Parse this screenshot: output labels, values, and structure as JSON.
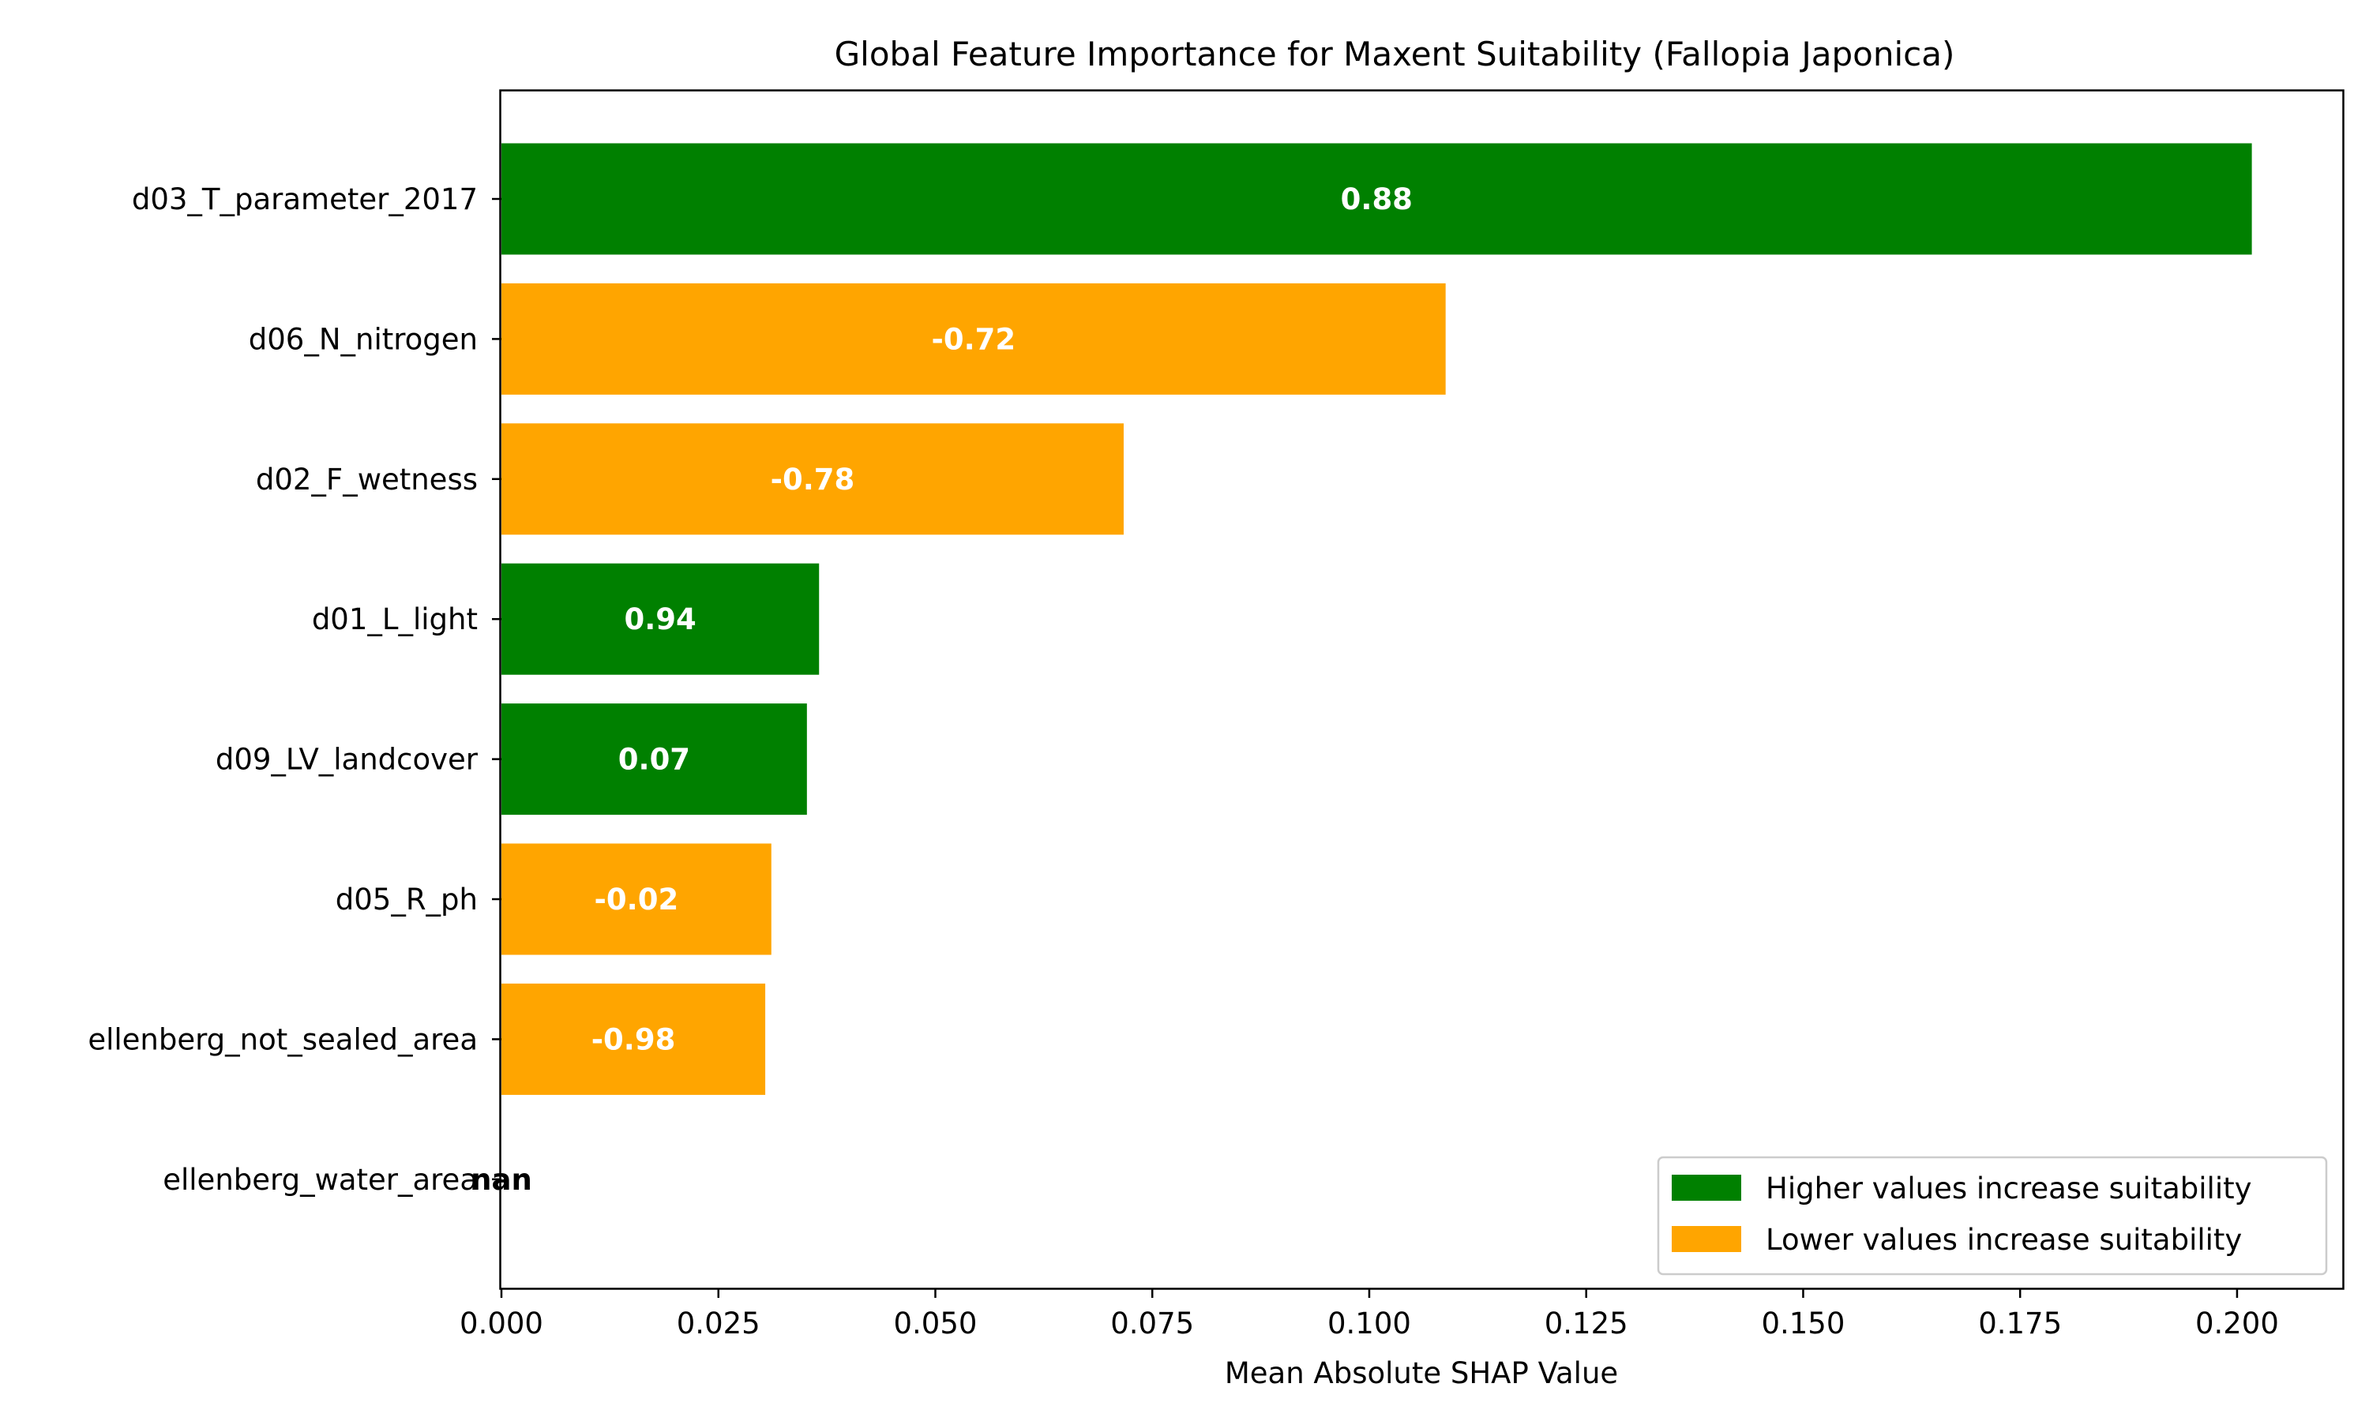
{
  "chart_data": {
    "type": "bar",
    "orientation": "horizontal",
    "title": "Global Feature Importance for Maxent Suitability (Fallopia Japonica)",
    "xlabel": "Mean Absolute SHAP Value",
    "ylabel": "",
    "xlim": [
      0,
      0.2122
    ],
    "xticks": [
      "0.000",
      "0.025",
      "0.050",
      "0.075",
      "0.100",
      "0.125",
      "0.150",
      "0.175",
      "0.200"
    ],
    "grid": false,
    "legend_position": "bottom-right",
    "legend": [
      {
        "label": "Higher values increase suitability",
        "color": "#008000"
      },
      {
        "label": "Lower values increase suitability",
        "color": "#FFA500"
      }
    ],
    "bars": [
      {
        "category": "d03_T_parameter_2017",
        "value": 0.2017,
        "label": "0.88",
        "color": "#008000"
      },
      {
        "category": "d06_N_nitrogen",
        "value": 0.1088,
        "label": "-0.72",
        "color": "#FFA500"
      },
      {
        "category": "d02_F_wetness",
        "value": 0.0717,
        "label": "-0.78",
        "color": "#FFA500"
      },
      {
        "category": "d01_L_light",
        "value": 0.0366,
        "label": "0.94",
        "color": "#008000"
      },
      {
        "category": "d09_LV_landcover",
        "value": 0.0352,
        "label": "0.07",
        "color": "#008000"
      },
      {
        "category": "d05_R_ph",
        "value": 0.0311,
        "label": "-0.02",
        "color": "#FFA500"
      },
      {
        "category": "ellenberg_not_sealed_area",
        "value": 0.0304,
        "label": "-0.98",
        "color": "#FFA500"
      },
      {
        "category": "ellenberg_water_area",
        "value": 0.0,
        "label": "nan",
        "color": "#000000"
      }
    ]
  }
}
